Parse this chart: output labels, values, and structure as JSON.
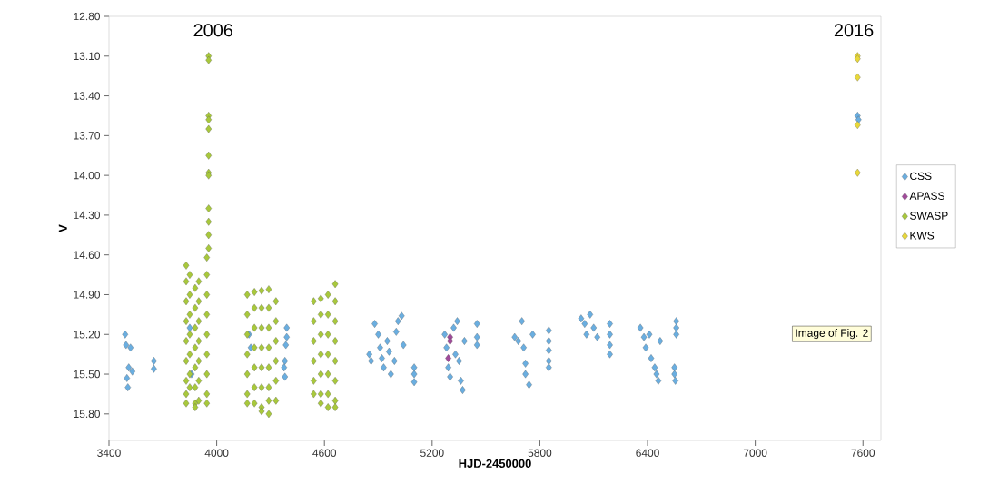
{
  "chart_data": {
    "type": "scatter",
    "xlabel": "HJD-2450000",
    "ylabel": "V",
    "xlim": [
      3400,
      7700
    ],
    "ylim": [
      16.0,
      12.8
    ],
    "xticks": [
      3400,
      4000,
      4600,
      5200,
      5800,
      6400,
      7000,
      7600
    ],
    "yticks": [
      {
        "value": 12.8,
        "label": "12.80"
      },
      {
        "value": 13.1,
        "label": "13.10"
      },
      {
        "value": 13.4,
        "label": "13.40"
      },
      {
        "value": 13.7,
        "label": "13.70"
      },
      {
        "value": 14.0,
        "label": "14.00"
      },
      {
        "value": 14.3,
        "label": "14.30"
      },
      {
        "value": 14.6,
        "label": "14.60"
      },
      {
        "value": 14.9,
        "label": "14.90"
      },
      {
        "value": 15.2,
        "label": "15.20"
      },
      {
        "value": 15.5,
        "label": "15.50"
      },
      {
        "value": 15.8,
        "label": "15.80"
      }
    ],
    "marker": "diamond",
    "legend": "right",
    "grid": false,
    "annotations": [
      "2006",
      "2016",
      "Image of Fig. 2"
    ],
    "series": [
      {
        "name": "CSS",
        "color": "#6aaee0",
        "x": [
          3490,
          3495,
          3520,
          3510,
          3530,
          3500,
          3505,
          3650,
          3650,
          3850,
          3860,
          4180,
          4190,
          4390,
          4390,
          4385,
          4380,
          4375,
          4380,
          4850,
          4860,
          4880,
          4900,
          4910,
          4920,
          4930,
          4950,
          4960,
          4970,
          4990,
          5000,
          5010,
          5030,
          5040,
          5100,
          5100,
          5100,
          5270,
          5280,
          5290,
          5300,
          5320,
          5330,
          5340,
          5350,
          5360,
          5370,
          5380,
          5450,
          5450,
          5450,
          5660,
          5680,
          5700,
          5710,
          5720,
          5720,
          5740,
          5760,
          5850,
          5850,
          5850,
          5850,
          5850,
          6030,
          6050,
          6060,
          6080,
          6100,
          6120,
          6190,
          6190,
          6190,
          6190,
          6360,
          6380,
          6390,
          6410,
          6420,
          6440,
          6450,
          6460,
          6470,
          6560,
          6560,
          6560,
          6550,
          6550,
          6555,
          7570,
          7575
        ],
        "values": [
          15.2,
          15.28,
          15.3,
          15.45,
          15.48,
          15.53,
          15.6,
          15.4,
          15.46,
          15.15,
          15.5,
          15.2,
          15.3,
          15.15,
          15.22,
          15.28,
          15.4,
          15.45,
          15.52,
          15.35,
          15.4,
          15.12,
          15.2,
          15.3,
          15.38,
          15.45,
          15.25,
          15.33,
          15.5,
          15.4,
          15.18,
          15.1,
          15.06,
          15.28,
          15.45,
          15.5,
          15.56,
          15.2,
          15.3,
          15.45,
          15.52,
          15.15,
          15.35,
          15.1,
          15.4,
          15.55,
          15.62,
          15.25,
          15.12,
          15.22,
          15.28,
          15.22,
          15.25,
          15.1,
          15.3,
          15.42,
          15.5,
          15.58,
          15.2,
          15.17,
          15.25,
          15.32,
          15.4,
          15.45,
          15.08,
          15.12,
          15.2,
          15.05,
          15.15,
          15.22,
          15.12,
          15.2,
          15.28,
          15.35,
          15.15,
          15.22,
          15.3,
          15.2,
          15.38,
          15.45,
          15.5,
          15.55,
          15.25,
          15.1,
          15.15,
          15.2,
          15.45,
          15.5,
          15.55,
          13.55,
          13.58
        ]
      },
      {
        "name": "APASS",
        "color": "#a04a9a",
        "x": [
          5300,
          5300,
          5290
        ],
        "values": [
          15.22,
          15.25,
          15.38
        ]
      },
      {
        "name": "SWASP",
        "color": "#a8c83c",
        "x": [
          3830,
          3830,
          3830,
          3830,
          3830,
          3830,
          3830,
          3830,
          3830,
          3850,
          3850,
          3850,
          3850,
          3850,
          3850,
          3850,
          3880,
          3880,
          3880,
          3880,
          3880,
          3880,
          3880,
          3880,
          3900,
          3900,
          3900,
          3900,
          3900,
          3900,
          3900,
          3945,
          3945,
          3945,
          3945,
          3945,
          3945,
          3945,
          3945,
          3945,
          3955,
          3955,
          3955,
          3955,
          3955,
          3955,
          3955,
          3955,
          3955,
          3955,
          3955,
          3955,
          4170,
          4170,
          4170,
          4170,
          4170,
          4170,
          4170,
          4210,
          4210,
          4210,
          4210,
          4210,
          4210,
          4210,
          4250,
          4250,
          4250,
          4250,
          4250,
          4250,
          4250,
          4250,
          4290,
          4290,
          4290,
          4290,
          4290,
          4290,
          4290,
          4290,
          4330,
          4330,
          4330,
          4330,
          4330,
          4330,
          4540,
          4540,
          4540,
          4540,
          4540,
          4540,
          4580,
          4580,
          4580,
          4580,
          4580,
          4580,
          4580,
          4620,
          4620,
          4620,
          4620,
          4620,
          4620,
          4620,
          4660,
          4660,
          4660,
          4660,
          4660,
          4660,
          4660,
          4660
        ],
        "values": [
          14.68,
          14.8,
          14.95,
          15.1,
          15.25,
          15.4,
          15.55,
          15.65,
          15.72,
          14.75,
          14.9,
          15.05,
          15.2,
          15.35,
          15.5,
          15.6,
          14.85,
          15.0,
          15.15,
          15.3,
          15.45,
          15.6,
          15.72,
          15.75,
          14.8,
          14.95,
          15.1,
          15.25,
          15.4,
          15.55,
          15.7,
          14.62,
          14.75,
          14.9,
          15.05,
          15.2,
          15.35,
          15.5,
          15.65,
          15.72,
          13.1,
          13.13,
          13.55,
          13.58,
          13.65,
          13.85,
          13.98,
          14.0,
          14.25,
          14.35,
          14.45,
          14.55,
          14.9,
          15.05,
          15.2,
          15.35,
          15.5,
          15.65,
          15.72,
          14.88,
          15.0,
          15.15,
          15.3,
          15.45,
          15.6,
          15.72,
          14.87,
          15.0,
          15.15,
          15.3,
          15.45,
          15.6,
          15.75,
          15.78,
          14.86,
          15.0,
          15.15,
          15.3,
          15.45,
          15.6,
          15.7,
          15.8,
          14.95,
          15.1,
          15.25,
          15.4,
          15.55,
          15.7,
          14.95,
          15.1,
          15.25,
          15.4,
          15.55,
          15.65,
          14.93,
          15.05,
          15.2,
          15.35,
          15.5,
          15.65,
          15.72,
          14.9,
          15.05,
          15.2,
          15.35,
          15.5,
          15.65,
          15.75,
          14.82,
          14.95,
          15.1,
          15.25,
          15.4,
          15.55,
          15.7,
          15.75
        ]
      },
      {
        "name": "KWS",
        "color": "#e8d83a",
        "x": [
          7570,
          7570,
          7570,
          7570,
          7570
        ],
        "values": [
          13.1,
          13.12,
          13.26,
          13.62,
          13.98
        ]
      }
    ]
  }
}
